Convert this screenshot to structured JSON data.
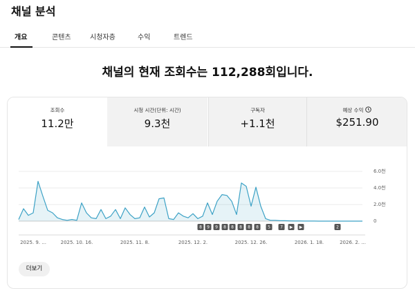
{
  "header": {
    "title": "채널 분석"
  },
  "tabs": [
    "개요",
    "콘텐츠",
    "시청자층",
    "수익",
    "트렌드"
  ],
  "headline": "채널의 현재 조회수는 112,288회입니다.",
  "metrics": [
    {
      "label": "조회수",
      "value": "11.2만"
    },
    {
      "label": "시청 시간(단위: 시간)",
      "value": "9.3천"
    },
    {
      "label": "구독자",
      "value": "+1.1천"
    },
    {
      "label": "예상 수익",
      "value": "$251.90"
    }
  ],
  "chart_data": {
    "type": "line",
    "color": "#3ba1c5",
    "categories": [
      null,
      null,
      null,
      "2025. 9. ...",
      null,
      null,
      null,
      null,
      null,
      null,
      null,
      null,
      "2025. 10. 16.",
      null,
      null,
      null,
      null,
      null,
      null,
      null,
      null,
      null,
      null,
      null,
      "2025. 11. 8.",
      null,
      null,
      null,
      null,
      null,
      null,
      null,
      null,
      null,
      null,
      null,
      "2025. 12. 2.",
      null,
      null,
      null,
      null,
      null,
      null,
      null,
      null,
      null,
      null,
      null,
      "2025. 12. 26.",
      null,
      null,
      null,
      null,
      null,
      null,
      null,
      null,
      null,
      null,
      null,
      "2026. 1. 18.",
      null,
      null,
      null,
      null,
      null,
      null,
      null,
      null,
      "2026. 2. ...",
      null,
      null
    ],
    "values": [
      200,
      1500,
      700,
      1000,
      4800,
      3000,
      1300,
      1000,
      400,
      200,
      100,
      200,
      100,
      2200,
      1000,
      400,
      300,
      1400,
      300,
      600,
      1400,
      300,
      1600,
      800,
      300,
      400,
      1700,
      500,
      1000,
      2700,
      2800,
      300,
      200,
      1000,
      600,
      400,
      900,
      300,
      600,
      2200,
      800,
      2400,
      3200,
      3100,
      2400,
      800,
      4600,
      4200,
      1800,
      4100,
      1800,
      300,
      100,
      100,
      50,
      50,
      30,
      20,
      20,
      10,
      10,
      10,
      0,
      0,
      0,
      0,
      0,
      0,
      0,
      0,
      0,
      0
    ],
    "ylim": [
      0,
      6000
    ],
    "yticks": [
      0,
      {
        "value": 2000,
        "label": "2.0천"
      },
      {
        "value": 4000,
        "label": "4.0천"
      },
      {
        "value": 6000,
        "label": "6.0천"
      }
    ],
    "grid": true,
    "markers": [
      "8",
      "9",
      "9",
      "8",
      "8",
      "8",
      "8",
      "8",
      "5",
      "7",
      "▶",
      "▶",
      "2"
    ]
  },
  "more_button": "더보기"
}
